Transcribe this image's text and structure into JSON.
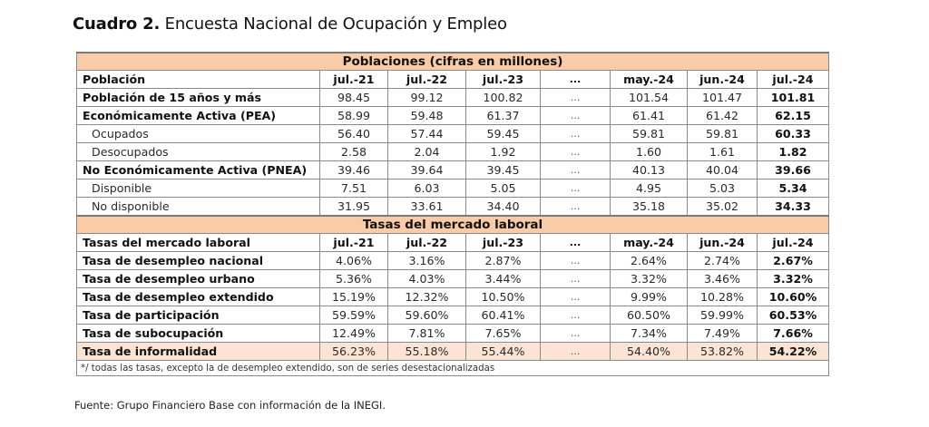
{
  "title": {
    "prefix": "Cuadro 2.",
    "text": " Encuesta Nacional de Ocupación y Empleo"
  },
  "populations": {
    "section_title": "Poblaciones (cifras en millones)",
    "header": [
      "Población",
      "jul.-21",
      "jul.-22",
      "jul.-23",
      "...",
      "may.-24",
      "jun.-24",
      "jul.-24"
    ],
    "rows": [
      {
        "label": "Población de 15 años y más",
        "bold": true,
        "values": [
          "98.45",
          "99.12",
          "100.82",
          "...",
          "101.54",
          "101.47",
          "101.81"
        ]
      },
      {
        "label": "Económicamente Activa (PEA)",
        "bold": true,
        "values": [
          "58.99",
          "59.48",
          "61.37",
          "...",
          "61.41",
          "61.42",
          "62.15"
        ]
      },
      {
        "label": "Ocupados",
        "bold": false,
        "values": [
          "56.40",
          "57.44",
          "59.45",
          "...",
          "59.81",
          "59.81",
          "60.33"
        ]
      },
      {
        "label": "Desocupados",
        "bold": false,
        "values": [
          "2.58",
          "2.04",
          "1.92",
          "...",
          "1.60",
          "1.61",
          "1.82"
        ]
      },
      {
        "label": "No Económicamente Activa (PNEA)",
        "bold": true,
        "values": [
          "39.46",
          "39.64",
          "39.45",
          "...",
          "40.13",
          "40.04",
          "39.66"
        ]
      },
      {
        "label": "Disponible",
        "bold": false,
        "values": [
          "7.51",
          "6.03",
          "5.05",
          "...",
          "4.95",
          "5.03",
          "5.34"
        ]
      },
      {
        "label": "No disponible",
        "bold": false,
        "values": [
          "31.95",
          "33.61",
          "34.40",
          "...",
          "35.18",
          "35.02",
          "34.33"
        ]
      }
    ]
  },
  "rates": {
    "section_title": "Tasas del mercado laboral",
    "header": [
      "Tasas del mercado laboral",
      "jul.-21",
      "jul.-22",
      "jul.-23",
      "...",
      "may.-24",
      "jun.-24",
      "jul.-24"
    ],
    "rows": [
      {
        "label": "Tasa de desempleo nacional",
        "values": [
          "4.06%",
          "3.16%",
          "2.87%",
          "...",
          "2.64%",
          "2.74%",
          "2.67%"
        ]
      },
      {
        "label": "Tasa de desempleo urbano",
        "values": [
          "5.36%",
          "4.03%",
          "3.44%",
          "...",
          "3.32%",
          "3.46%",
          "3.32%"
        ]
      },
      {
        "label": "Tasa de desempleo extendido",
        "values": [
          "15.19%",
          "12.32%",
          "10.50%",
          "...",
          "9.99%",
          "10.28%",
          "10.60%"
        ]
      },
      {
        "label": "Tasa de participación",
        "values": [
          "59.59%",
          "59.60%",
          "60.41%",
          "...",
          "60.50%",
          "59.99%",
          "60.53%"
        ]
      },
      {
        "label": "Tasa de subocupación",
        "values": [
          "12.49%",
          "7.81%",
          "7.65%",
          "...",
          "7.34%",
          "7.49%",
          "7.66%"
        ]
      },
      {
        "label": "Tasa de informalidad",
        "highlight": true,
        "values": [
          "56.23%",
          "55.18%",
          "55.44%",
          "...",
          "54.40%",
          "53.82%",
          "54.22%"
        ]
      }
    ]
  },
  "note": "*/ todas las tasas, excepto la de desempleo extendido, son de series desestacionalizadas",
  "source": "Fuente: Grupo Financiero Base con información de la INEGI.",
  "colors": {
    "section_bg": "#f9cba6",
    "highlight_bg": "#fbe4d3",
    "border": "#8a8a8a"
  }
}
